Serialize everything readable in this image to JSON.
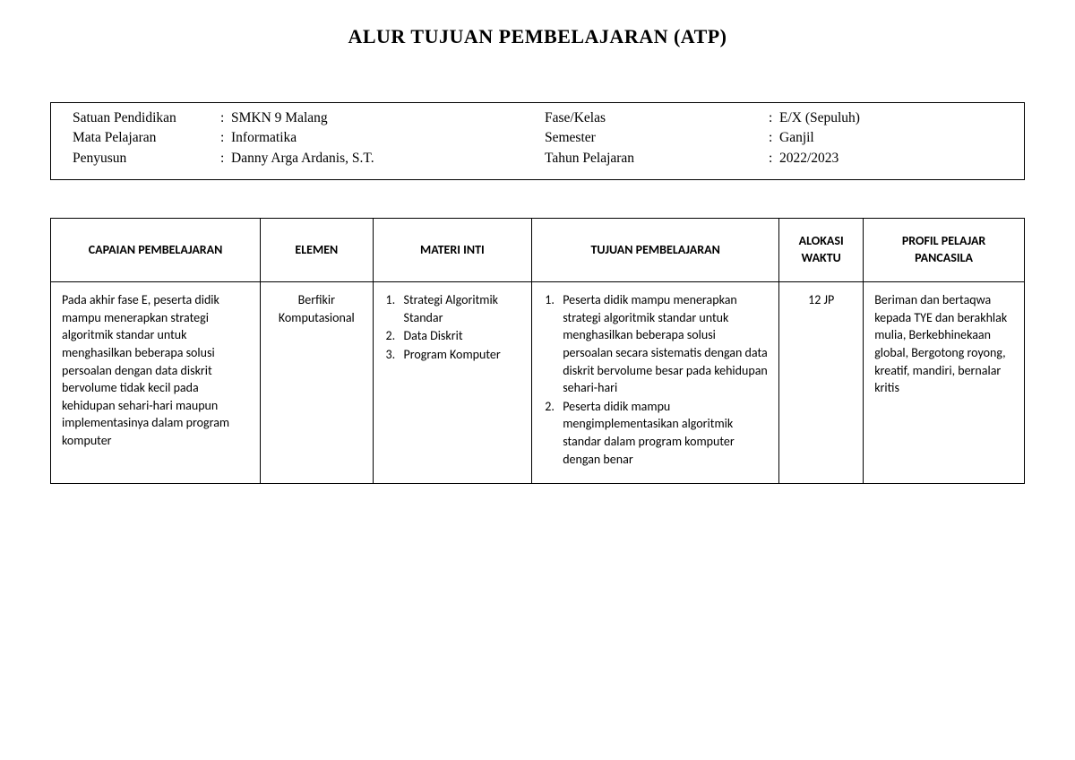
{
  "title": "ALUR TUJUAN PEMBELAJARAN (ATP)",
  "info": {
    "left": [
      {
        "label": "Satuan Pendidikan",
        "value": "SMKN 9 Malang"
      },
      {
        "label": "Mata Pelajaran",
        "value": "Informatika"
      },
      {
        "label": "Penyusun",
        "value": " Danny Arga Ardanis, S.T."
      }
    ],
    "right": [
      {
        "label": "Fase/Kelas",
        "value": "E/X (Sepuluh)"
      },
      {
        "label": "Semester",
        "value": "Ganjil"
      },
      {
        "label": "Tahun Pelajaran",
        "value": "2022/2023"
      }
    ]
  },
  "table": {
    "headers": {
      "capaian": "CAPAIAN PEMBELAJARAN",
      "elemen": "ELEMEN",
      "materi": "MATERI INTI",
      "tujuan": "TUJUAN PEMBELAJARAN",
      "alokasi": "ALOKASI WAKTU",
      "profil": "PROFIL PELAJAR PANCASILA"
    },
    "row": {
      "capaian": "Pada akhir fase E, peserta didik mampu menerapkan strategi algoritmik standar untuk menghasilkan beberapa solusi persoalan dengan data diskrit bervolume tidak kecil pada kehidupan sehari-hari maupun implementasinya dalam program komputer",
      "elemen": "Berfikir Komputasional",
      "materi": [
        "Strategi Algoritmik Standar",
        "Data Diskrit",
        "Program Komputer"
      ],
      "tujuan": [
        "Peserta didik mampu menerapkan strategi algoritmik standar untuk menghasilkan beberapa solusi persoalan secara sistematis dengan data diskrit bervolume besar pada kehidupan sehari-hari",
        "Peserta didik mampu mengimplementasikan algoritmik standar dalam program komputer dengan benar"
      ],
      "alokasi": "12 JP",
      "profil": "Beriman dan bertaqwa kepada TYE dan berakhlak mulia, Berkebhinekaan global, Bergotong royong, kreatif, mandiri, bernalar kritis"
    }
  },
  "separator": ":"
}
